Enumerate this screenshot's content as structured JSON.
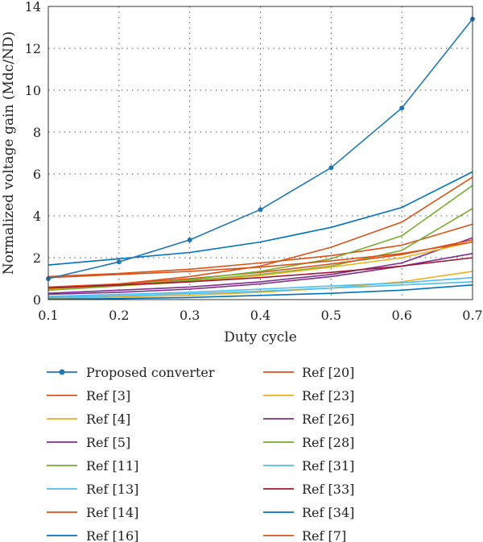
{
  "chart_data": {
    "type": "line",
    "xlabel": "Duty cycle",
    "ylabel": "Normalized voltage gain (Mdc/ND)",
    "xlim": [
      0.1,
      0.7
    ],
    "ylim": [
      0,
      14
    ],
    "x_ticks": [
      0.1,
      0.2,
      0.3,
      0.4,
      0.5,
      0.6,
      0.7
    ],
    "y_ticks": [
      0,
      2,
      4,
      6,
      8,
      10,
      12,
      14
    ],
    "grid": "dotted",
    "legend_position": "below plot, two columns",
    "x": [
      0.1,
      0.2,
      0.3,
      0.4,
      0.5,
      0.6,
      0.7
    ],
    "series": [
      {
        "name": "Proposed converter",
        "color": "#1f77b4",
        "marker": "circle",
        "values": [
          1.0,
          1.8,
          2.85,
          4.3,
          6.3,
          9.15,
          13.4
        ]
      },
      {
        "name": "Ref [3]",
        "color": "#d95319",
        "values": [
          1.1,
          1.25,
          1.45,
          1.75,
          2.1,
          2.6,
          3.6
        ]
      },
      {
        "name": "Ref [4]",
        "color": "#edb120",
        "values": [
          0.05,
          0.12,
          0.2,
          0.35,
          0.55,
          0.85,
          1.35
        ]
      },
      {
        "name": "Ref [5]",
        "color": "#7e2f8e",
        "values": [
          0.3,
          0.45,
          0.6,
          0.85,
          1.2,
          1.75,
          2.95
        ]
      },
      {
        "name": "Ref [11]",
        "color": "#77ac30",
        "values": [
          0.55,
          0.7,
          0.9,
          1.2,
          1.6,
          2.35,
          4.35
        ]
      },
      {
        "name": "Ref [13]",
        "color": "#4dbeee",
        "values": [
          0.15,
          0.25,
          0.35,
          0.5,
          0.65,
          0.8,
          1.05
        ]
      },
      {
        "name": "Ref [14]",
        "color": "#d95319",
        "values": [
          0.6,
          0.75,
          1.0,
          1.3,
          1.7,
          2.15,
          2.85
        ]
      },
      {
        "name": "Ref [16]",
        "color": "#0072bd",
        "values": [
          0.02,
          0.05,
          0.1,
          0.2,
          0.3,
          0.45,
          0.7
        ]
      },
      {
        "name": "Ref [20]",
        "color": "#d95319",
        "values": [
          0.5,
          0.75,
          1.1,
          1.6,
          2.5,
          3.7,
          5.85
        ]
      },
      {
        "name": "Ref [23]",
        "color": "#edb120",
        "values": [
          0.5,
          0.65,
          0.85,
          1.15,
          1.55,
          2.0,
          2.75
        ]
      },
      {
        "name": "Ref [26]",
        "color": "#7e2f8e",
        "values": [
          0.25,
          0.35,
          0.5,
          0.75,
          1.1,
          1.6,
          2.2
        ]
      },
      {
        "name": "Ref [28]",
        "color": "#77ac30",
        "values": [
          0.45,
          0.65,
          0.95,
          1.35,
          1.95,
          3.05,
          5.45
        ]
      },
      {
        "name": "Ref [31]",
        "color": "#4dbeee",
        "values": [
          0.1,
          0.18,
          0.28,
          0.4,
          0.55,
          0.7,
          0.85
        ]
      },
      {
        "name": "Ref [33]",
        "color": "#a2142f",
        "values": [
          0.55,
          0.7,
          0.85,
          1.05,
          1.3,
          1.6,
          2.0
        ]
      },
      {
        "name": "Ref [34]",
        "color": "#0072bd",
        "values": [
          1.65,
          1.95,
          2.25,
          2.75,
          3.45,
          4.4,
          6.1
        ]
      },
      {
        "name": "Ref [7]",
        "color": "#d95319",
        "values": [
          1.05,
          1.2,
          1.35,
          1.55,
          1.85,
          2.2,
          2.75
        ]
      }
    ]
  }
}
